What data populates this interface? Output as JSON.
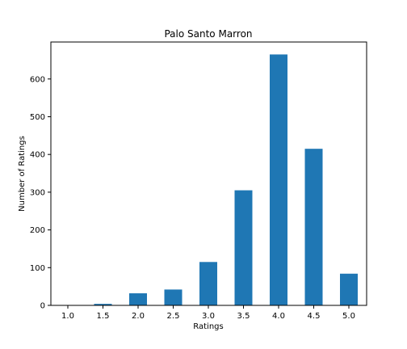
{
  "chart_data": {
    "type": "bar",
    "title": "Palo Santo Marron",
    "xlabel": "Ratings",
    "ylabel": "Number of Ratings",
    "categories": [
      "1.0",
      "1.5",
      "2.0",
      "2.5",
      "3.0",
      "3.5",
      "4.0",
      "4.5",
      "5.0"
    ],
    "values": [
      0,
      4,
      32,
      42,
      115,
      305,
      665,
      415,
      84
    ],
    "yticks": [
      0,
      100,
      200,
      300,
      400,
      500,
      600
    ],
    "ylim": [
      0,
      698
    ],
    "grid": false,
    "legend": "none",
    "bar_color": "#1f77b4"
  }
}
